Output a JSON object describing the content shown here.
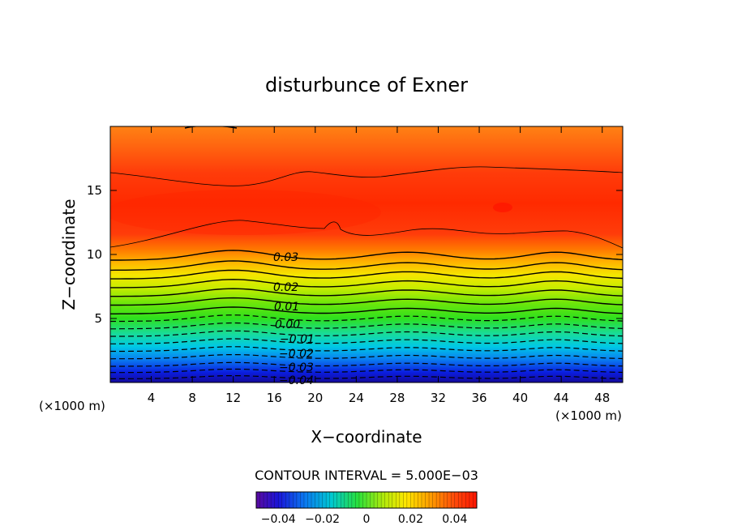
{
  "chart_data": {
    "type": "contour",
    "title": "disturbunce of Exner",
    "xlabel": "X−coordinate",
    "ylabel": "Z−coordinate",
    "x_unit": "(×1000 m)",
    "y_unit": "(×1000 m)",
    "xlim": [
      0,
      50
    ],
    "ylim": [
      0,
      20
    ],
    "x_ticks": [
      "4",
      "8",
      "12",
      "16",
      "20",
      "24",
      "28",
      "32",
      "36",
      "40",
      "44",
      "48"
    ],
    "y_ticks": [
      "5",
      "10",
      "15"
    ],
    "contour_interval_text": "CONTOUR INTERVAL = 5.000E−03",
    "contour_labels": [
      "0.03",
      "0.02",
      "0.01",
      "0.00",
      "−0.01",
      "−0.02",
      "−0.03",
      "−0.04"
    ],
    "levels": [
      {
        "value": -0.045,
        "z": 0.4,
        "style": "dashed"
      },
      {
        "value": -0.04,
        "z": 0.9,
        "style": "dashed"
      },
      {
        "value": -0.035,
        "z": 1.4,
        "style": "dashed"
      },
      {
        "value": -0.03,
        "z": 2.0,
        "style": "dashed"
      },
      {
        "value": -0.025,
        "z": 2.6,
        "style": "dashed"
      },
      {
        "value": -0.02,
        "z": 3.2,
        "style": "dashed"
      },
      {
        "value": -0.015,
        "z": 3.8,
        "style": "dashed"
      },
      {
        "value": -0.01,
        "z": 4.4,
        "style": "dashed"
      },
      {
        "value": -0.005,
        "z": 5.0,
        "style": "dashed"
      },
      {
        "value": 0.0,
        "z": 5.6,
        "style": "solid"
      },
      {
        "value": 0.005,
        "z": 6.3,
        "style": "solid"
      },
      {
        "value": 0.01,
        "z": 7.0,
        "style": "solid"
      },
      {
        "value": 0.015,
        "z": 7.7,
        "style": "solid"
      },
      {
        "value": 0.02,
        "z": 8.4,
        "style": "solid"
      },
      {
        "value": 0.025,
        "z": 9.1,
        "style": "solid"
      },
      {
        "value": 0.03,
        "z": 9.9,
        "style": "solid"
      }
    ],
    "colorbar": {
      "ticks": [
        "−0.04",
        "−0.02",
        "0",
        "0.02",
        "0.04"
      ],
      "range": [
        -0.05,
        0.05
      ]
    }
  }
}
